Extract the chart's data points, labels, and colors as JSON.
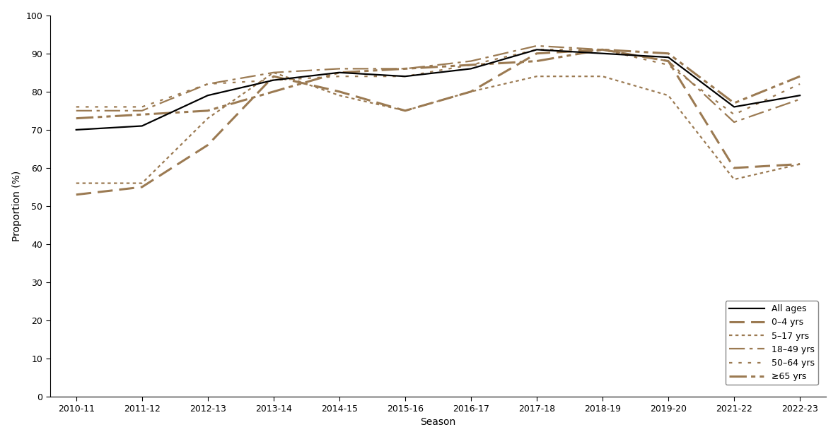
{
  "seasons": [
    "2010-11",
    "2011-12",
    "2012-13",
    "2013-14",
    "2014-15",
    "2015-16",
    "2016-17",
    "2017-18",
    "2018-19",
    "2019-20",
    "2021-22",
    "2022-23"
  ],
  "all_ages": [
    70,
    71,
    79,
    83,
    85,
    84,
    86,
    91,
    90,
    89,
    76,
    79
  ],
  "age_0_4": [
    53,
    55,
    66,
    84,
    80,
    75,
    80,
    90,
    91,
    88,
    60,
    61
  ],
  "age_5_17": [
    56,
    56,
    73,
    85,
    79,
    75,
    80,
    84,
    84,
    79,
    57,
    61
  ],
  "age_18_49": [
    75,
    75,
    82,
    85,
    86,
    86,
    88,
    92,
    91,
    88,
    72,
    78
  ],
  "age_50_64": [
    76,
    76,
    82,
    83,
    84,
    84,
    87,
    91,
    91,
    87,
    74,
    82
  ],
  "age_65plus": [
    73,
    74,
    75,
    80,
    85,
    86,
    87,
    88,
    91,
    90,
    77,
    84
  ],
  "color_brown": "#9B7A52",
  "color_black": "#000000",
  "ylabel": "Proportion (%)",
  "xlabel": "Season",
  "ylim": [
    0,
    100
  ],
  "yticks": [
    0,
    10,
    20,
    30,
    40,
    50,
    60,
    70,
    80,
    90,
    100
  ],
  "legend_labels": [
    "All ages",
    "0–4 yrs",
    "5–17 yrs",
    "18–49 yrs",
    "50–64 yrs",
    "≥65 yrs"
  ],
  "background_color": "#ffffff"
}
